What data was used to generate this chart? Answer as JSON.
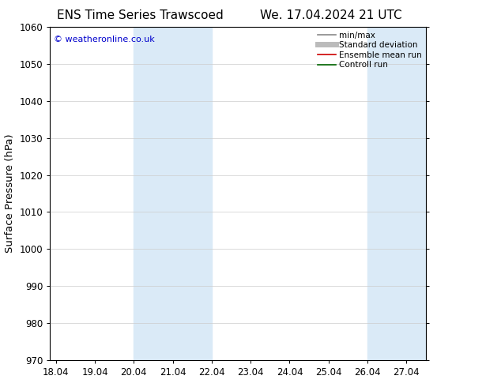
{
  "title_left": "ENS Time Series Trawscoed",
  "title_right": "We. 17.04.2024 21 UTC",
  "ylabel": "Surface Pressure (hPa)",
  "ylim": [
    970,
    1060
  ],
  "yticks": [
    970,
    980,
    990,
    1000,
    1010,
    1020,
    1030,
    1040,
    1050,
    1060
  ],
  "xtick_positions": [
    18,
    19,
    20,
    21,
    22,
    23,
    24,
    25,
    26,
    27
  ],
  "xtick_labels": [
    "18.04",
    "19.04",
    "20.04",
    "21.04",
    "22.04",
    "23.04",
    "24.04",
    "25.04",
    "26.04",
    "27.04"
  ],
  "xlim": [
    17.85,
    27.5
  ],
  "shaded_bands": [
    {
      "x_start": 20.0,
      "x_end": 22.0
    },
    {
      "x_start": 26.0,
      "x_end": 27.5
    }
  ],
  "shaded_color": "#daeaf7",
  "watermark_text": "© weatheronline.co.uk",
  "watermark_color": "#0000cc",
  "legend_entries": [
    {
      "label": "min/max",
      "color": "#888888",
      "lw": 1.2
    },
    {
      "label": "Standard deviation",
      "color": "#bbbbbb",
      "lw": 5
    },
    {
      "label": "Ensemble mean run",
      "color": "#cc0000",
      "lw": 1.2
    },
    {
      "label": "Controll run",
      "color": "#006600",
      "lw": 1.2
    }
  ],
  "bg_color": "#ffffff",
  "grid_color": "#cccccc",
  "title_fontsize": 11,
  "tick_fontsize": 8.5,
  "ylabel_fontsize": 9.5
}
